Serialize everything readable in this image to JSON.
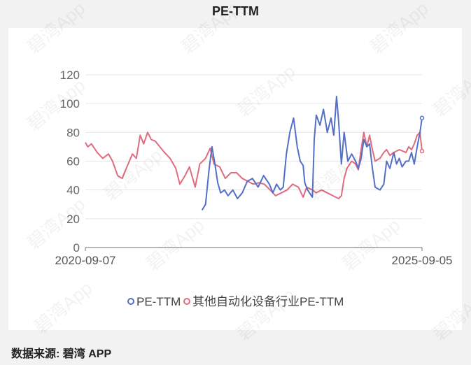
{
  "title": "PE-TTM",
  "source": "数据来源: 碧湾 APP",
  "watermark": "碧湾App",
  "chart_data": {
    "type": "line",
    "title": "PE-TTM",
    "ylim": [
      0,
      120
    ],
    "yticks": [
      0,
      20,
      40,
      60,
      80,
      100,
      120
    ],
    "xlim": [
      "2020-09-07",
      "2025-09-05"
    ],
    "xtick_labels": [
      "2020-09-07",
      "2025-09-05"
    ],
    "grid": true,
    "legend_position": "bottom",
    "series": [
      {
        "name": "PE-TTM",
        "color": "#5470c6",
        "points": [
          [
            "2022-06-01",
            26
          ],
          [
            "2022-06-20",
            30
          ],
          [
            "2022-07-10",
            55
          ],
          [
            "2022-07-25",
            70
          ],
          [
            "2022-08-10",
            58
          ],
          [
            "2022-08-25",
            45
          ],
          [
            "2022-09-10",
            38
          ],
          [
            "2022-10-01",
            40
          ],
          [
            "2022-10-20",
            36
          ],
          [
            "2022-11-15",
            40
          ],
          [
            "2022-12-10",
            34
          ],
          [
            "2023-01-05",
            38
          ],
          [
            "2023-02-01",
            46
          ],
          [
            "2023-03-01",
            48
          ],
          [
            "2023-04-01",
            42
          ],
          [
            "2023-05-01",
            50
          ],
          [
            "2023-06-01",
            44
          ],
          [
            "2023-06-20",
            38
          ],
          [
            "2023-07-10",
            44
          ],
          [
            "2023-07-30",
            40
          ],
          [
            "2023-08-15",
            42
          ],
          [
            "2023-09-01",
            65
          ],
          [
            "2023-09-20",
            80
          ],
          [
            "2023-10-10",
            90
          ],
          [
            "2023-10-30",
            70
          ],
          [
            "2023-11-15",
            60
          ],
          [
            "2023-12-01",
            57
          ],
          [
            "2023-12-10",
            45
          ],
          [
            "2023-12-25",
            40
          ],
          [
            "2024-01-20",
            35
          ],
          [
            "2024-01-30",
            75
          ],
          [
            "2024-02-10",
            92
          ],
          [
            "2024-03-01",
            85
          ],
          [
            "2024-03-20",
            96
          ],
          [
            "2024-04-10",
            80
          ],
          [
            "2024-04-30",
            90
          ],
          [
            "2024-05-15",
            78
          ],
          [
            "2024-05-30",
            105
          ],
          [
            "2024-06-10",
            88
          ],
          [
            "2024-06-25",
            58
          ],
          [
            "2024-07-10",
            80
          ],
          [
            "2024-07-30",
            60
          ],
          [
            "2024-08-20",
            65
          ],
          [
            "2024-09-10",
            60
          ],
          [
            "2024-09-25",
            55
          ],
          [
            "2024-10-10",
            62
          ],
          [
            "2024-10-25",
            75
          ],
          [
            "2024-11-10",
            70
          ],
          [
            "2024-11-25",
            72
          ],
          [
            "2024-12-10",
            55
          ],
          [
            "2024-12-25",
            42
          ],
          [
            "2025-01-20",
            40
          ],
          [
            "2025-02-10",
            44
          ],
          [
            "2025-02-25",
            60
          ],
          [
            "2025-03-15",
            55
          ],
          [
            "2025-04-05",
            66
          ],
          [
            "2025-04-20",
            58
          ],
          [
            "2025-05-05",
            62
          ],
          [
            "2025-05-20",
            56
          ],
          [
            "2025-06-10",
            60
          ],
          [
            "2025-06-25",
            60
          ],
          [
            "2025-07-10",
            66
          ],
          [
            "2025-07-25",
            58
          ],
          [
            "2025-08-10",
            70
          ],
          [
            "2025-08-25",
            80
          ],
          [
            "2025-09-05",
            90
          ]
        ]
      },
      {
        "name": "其他自动化设备行业PE-TTM",
        "color": "#e06c7f",
        "points": [
          [
            "2020-09-07",
            73
          ],
          [
            "2020-09-20",
            70
          ],
          [
            "2020-10-10",
            72
          ],
          [
            "2020-11-10",
            66
          ],
          [
            "2020-12-10",
            62
          ],
          [
            "2021-01-10",
            65
          ],
          [
            "2021-02-01",
            60
          ],
          [
            "2021-03-01",
            50
          ],
          [
            "2021-03-25",
            48
          ],
          [
            "2021-04-20",
            56
          ],
          [
            "2021-05-20",
            65
          ],
          [
            "2021-06-10",
            62
          ],
          [
            "2021-07-01",
            78
          ],
          [
            "2021-07-20",
            72
          ],
          [
            "2021-08-10",
            80
          ],
          [
            "2021-08-30",
            75
          ],
          [
            "2021-09-20",
            74
          ],
          [
            "2021-10-15",
            70
          ],
          [
            "2021-11-10",
            66
          ],
          [
            "2021-12-10",
            62
          ],
          [
            "2022-01-10",
            55
          ],
          [
            "2022-02-01",
            44
          ],
          [
            "2022-03-01",
            50
          ],
          [
            "2022-03-25",
            56
          ],
          [
            "2022-04-25",
            42
          ],
          [
            "2022-05-20",
            58
          ],
          [
            "2022-06-20",
            62
          ],
          [
            "2022-07-15",
            69
          ],
          [
            "2022-08-05",
            58
          ],
          [
            "2022-09-05",
            56
          ],
          [
            "2022-10-05",
            48
          ],
          [
            "2022-11-05",
            52
          ],
          [
            "2022-12-05",
            52
          ],
          [
            "2023-01-05",
            48
          ],
          [
            "2023-02-05",
            46
          ],
          [
            "2023-03-05",
            44
          ],
          [
            "2023-04-05",
            45
          ],
          [
            "2023-05-05",
            44
          ],
          [
            "2023-06-05",
            40
          ],
          [
            "2023-07-05",
            36
          ],
          [
            "2023-08-05",
            38
          ],
          [
            "2023-09-05",
            40
          ],
          [
            "2023-10-05",
            44
          ],
          [
            "2023-11-05",
            42
          ],
          [
            "2023-12-01",
            35
          ],
          [
            "2023-12-20",
            42
          ],
          [
            "2024-01-20",
            40
          ],
          [
            "2024-02-10",
            38
          ],
          [
            "2024-03-10",
            40
          ],
          [
            "2024-04-10",
            38
          ],
          [
            "2024-05-10",
            36
          ],
          [
            "2024-06-10",
            34
          ],
          [
            "2024-06-25",
            36
          ],
          [
            "2024-07-10",
            48
          ],
          [
            "2024-07-25",
            55
          ],
          [
            "2024-08-20",
            60
          ],
          [
            "2024-09-10",
            58
          ],
          [
            "2024-09-25",
            54
          ],
          [
            "2024-10-10",
            68
          ],
          [
            "2024-10-25",
            80
          ],
          [
            "2024-11-10",
            70
          ],
          [
            "2024-11-25",
            78
          ],
          [
            "2024-12-10",
            68
          ],
          [
            "2024-12-25",
            60
          ],
          [
            "2025-01-20",
            62
          ],
          [
            "2025-02-10",
            66
          ],
          [
            "2025-02-25",
            68
          ],
          [
            "2025-03-15",
            64
          ],
          [
            "2025-04-05",
            66
          ],
          [
            "2025-05-05",
            68
          ],
          [
            "2025-06-10",
            66
          ],
          [
            "2025-06-25",
            70
          ],
          [
            "2025-07-10",
            68
          ],
          [
            "2025-07-25",
            72
          ],
          [
            "2025-08-10",
            78
          ],
          [
            "2025-08-25",
            80
          ],
          [
            "2025-09-05",
            67
          ]
        ]
      }
    ]
  }
}
